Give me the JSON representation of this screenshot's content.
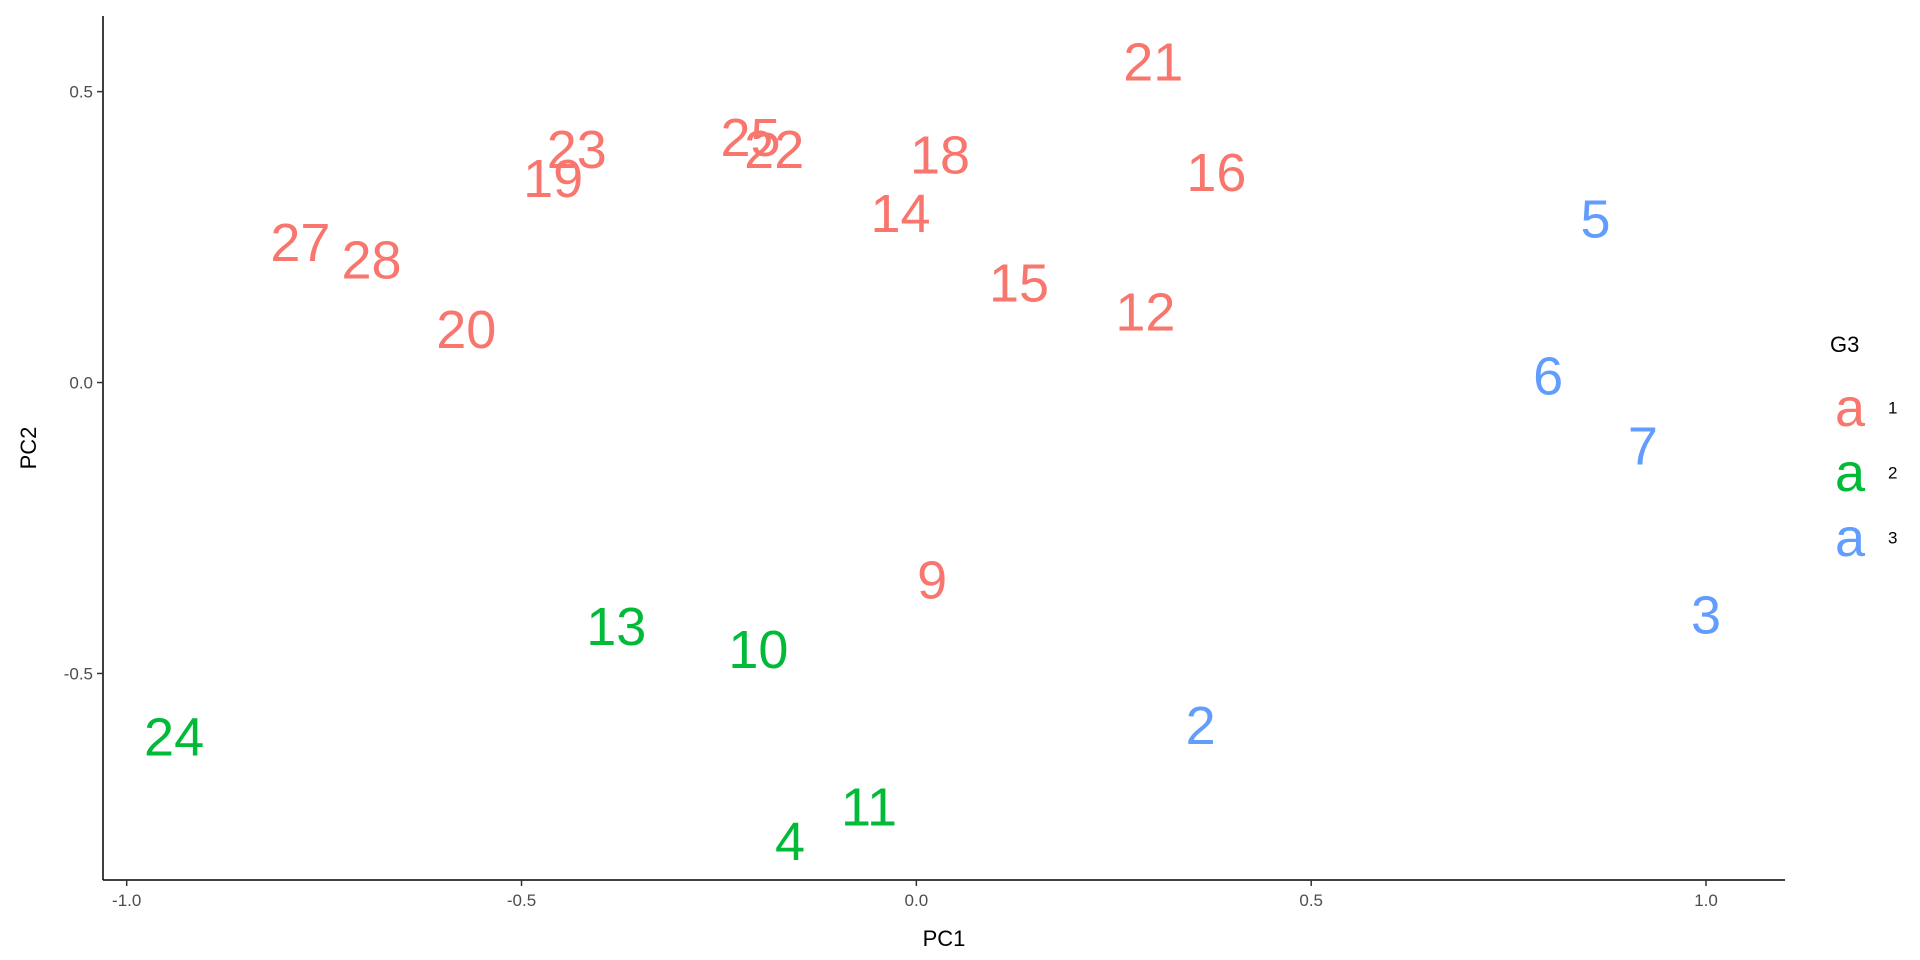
{
  "chart_data": {
    "type": "scatter",
    "title": "",
    "xlabel": "PC1",
    "ylabel": "PC2",
    "xlim": [
      -1.03,
      1.1
    ],
    "ylim": [
      -0.855,
      0.63
    ],
    "xticks": [
      -1.0,
      -0.5,
      0.0,
      0.5,
      1.0
    ],
    "xtick_labels": [
      "-1.0",
      "-0.5",
      "0.0",
      "0.5",
      "1.0"
    ],
    "yticks": [
      -0.5,
      0.0,
      0.5
    ],
    "ytick_labels": [
      "-0.5",
      "0.0",
      "0.5"
    ],
    "grid": false,
    "legend": {
      "title": "G3",
      "position": "right",
      "key_glyph": "a",
      "entries": [
        {
          "label": "1",
          "color": "#F8766D"
        },
        {
          "label": "2",
          "color": "#00BA38"
        },
        {
          "label": "3",
          "color": "#619CFF"
        }
      ]
    },
    "points": [
      {
        "label": "21",
        "x": 0.3,
        "y": 0.55,
        "group": "1"
      },
      {
        "label": "25",
        "x": -0.21,
        "y": 0.42,
        "group": "1"
      },
      {
        "label": "22",
        "x": -0.18,
        "y": 0.4,
        "group": "1"
      },
      {
        "label": "23",
        "x": -0.43,
        "y": 0.4,
        "group": "1"
      },
      {
        "label": "19",
        "x": -0.46,
        "y": 0.35,
        "group": "1"
      },
      {
        "label": "18",
        "x": 0.03,
        "y": 0.39,
        "group": "1"
      },
      {
        "label": "16",
        "x": 0.38,
        "y": 0.36,
        "group": "1"
      },
      {
        "label": "14",
        "x": -0.02,
        "y": 0.29,
        "group": "1"
      },
      {
        "label": "27",
        "x": -0.78,
        "y": 0.24,
        "group": "1"
      },
      {
        "label": "28",
        "x": -0.69,
        "y": 0.21,
        "group": "1"
      },
      {
        "label": "15",
        "x": 0.13,
        "y": 0.17,
        "group": "1"
      },
      {
        "label": "12",
        "x": 0.29,
        "y": 0.12,
        "group": "1"
      },
      {
        "label": "20",
        "x": -0.57,
        "y": 0.09,
        "group": "1"
      },
      {
        "label": "9",
        "x": 0.02,
        "y": -0.34,
        "group": "1"
      },
      {
        "label": "13",
        "x": -0.38,
        "y": -0.42,
        "group": "2"
      },
      {
        "label": "10",
        "x": -0.2,
        "y": -0.46,
        "group": "2"
      },
      {
        "label": "24",
        "x": -0.94,
        "y": -0.61,
        "group": "2"
      },
      {
        "label": "11",
        "x": -0.06,
        "y": -0.73,
        "group": "2"
      },
      {
        "label": "4",
        "x": -0.16,
        "y": -0.79,
        "group": "2"
      },
      {
        "label": "5",
        "x": 0.86,
        "y": 0.28,
        "group": "3"
      },
      {
        "label": "6",
        "x": 0.8,
        "y": 0.01,
        "group": "3"
      },
      {
        "label": "7",
        "x": 0.92,
        "y": -0.11,
        "group": "3"
      },
      {
        "label": "3",
        "x": 1.0,
        "y": -0.4,
        "group": "3"
      },
      {
        "label": "2",
        "x": 0.36,
        "y": -0.59,
        "group": "3"
      }
    ]
  }
}
